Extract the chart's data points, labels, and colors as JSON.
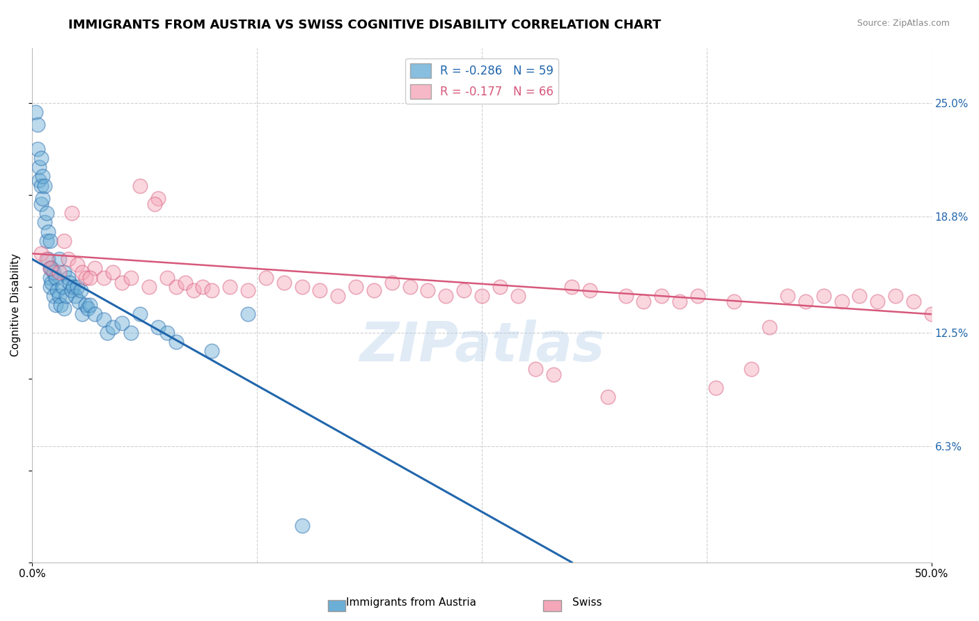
{
  "title": "IMMIGRANTS FROM AUSTRIA VS SWISS COGNITIVE DISABILITY CORRELATION CHART",
  "source_text": "Source: ZipAtlas.com",
  "ylabel": "Cognitive Disability",
  "xlim": [
    0.0,
    50.0
  ],
  "ylim": [
    0.0,
    28.0
  ],
  "y_tick_vals": [
    6.3,
    12.5,
    18.8,
    25.0
  ],
  "y_tick_labels": [
    "6.3%",
    "12.5%",
    "18.8%",
    "25.0%"
  ],
  "austria_R": -0.286,
  "austria_N": 59,
  "swiss_R": -0.177,
  "swiss_N": 66,
  "austria_color": "#6baed6",
  "swiss_color": "#f4a7b9",
  "austria_line_color": "#2166ac",
  "swiss_line_color": "#d6587a",
  "background_color": "#ffffff",
  "grid_color": "#d0d0d0",
  "title_fontsize": 13,
  "watermark": "ZIPatlas",
  "austria_scatter_x": [
    0.2,
    0.3,
    0.3,
    0.4,
    0.4,
    0.5,
    0.5,
    0.5,
    0.6,
    0.6,
    0.7,
    0.7,
    0.8,
    0.8,
    0.9,
    0.9,
    1.0,
    1.0,
    1.0,
    1.0,
    1.1,
    1.1,
    1.2,
    1.2,
    1.3,
    1.3,
    1.4,
    1.5,
    1.5,
    1.6,
    1.7,
    1.8,
    1.8,
    1.9,
    2.0,
    2.1,
    2.2,
    2.3,
    2.4,
    2.5,
    2.6,
    2.7,
    2.8,
    3.0,
    3.1,
    3.2,
    3.5,
    4.0,
    4.2,
    4.5,
    5.0,
    5.5,
    6.0,
    7.0,
    7.5,
    8.0,
    10.0,
    12.0,
    15.0
  ],
  "austria_scatter_y": [
    24.5,
    23.8,
    22.5,
    21.5,
    20.8,
    22.0,
    20.5,
    19.5,
    21.0,
    19.8,
    20.5,
    18.5,
    19.0,
    17.5,
    18.0,
    16.5,
    17.5,
    16.0,
    15.5,
    15.0,
    16.0,
    15.2,
    15.8,
    14.5,
    15.5,
    14.0,
    14.8,
    16.5,
    14.5,
    14.0,
    15.0,
    15.8,
    13.8,
    14.5,
    15.5,
    15.2,
    14.8,
    15.0,
    14.5,
    15.0,
    14.2,
    14.8,
    13.5,
    14.0,
    13.8,
    14.0,
    13.5,
    13.2,
    12.5,
    12.8,
    13.0,
    12.5,
    13.5,
    12.8,
    12.5,
    12.0,
    11.5,
    13.5,
    2.0
  ],
  "swiss_scatter_x": [
    0.5,
    0.8,
    1.0,
    1.5,
    1.8,
    2.0,
    2.2,
    2.5,
    2.8,
    3.0,
    3.5,
    4.0,
    4.5,
    5.0,
    5.5,
    6.0,
    6.5,
    7.0,
    7.5,
    8.0,
    8.5,
    9.0,
    9.5,
    10.0,
    11.0,
    12.0,
    13.0,
    14.0,
    15.0,
    16.0,
    17.0,
    18.0,
    19.0,
    20.0,
    21.0,
    22.0,
    23.0,
    24.0,
    25.0,
    26.0,
    27.0,
    28.0,
    29.0,
    30.0,
    31.0,
    32.0,
    33.0,
    34.0,
    35.0,
    36.0,
    37.0,
    38.0,
    39.0,
    40.0,
    41.0,
    42.0,
    43.0,
    44.0,
    45.0,
    46.0,
    47.0,
    48.0,
    49.0,
    50.0,
    3.2,
    6.8
  ],
  "swiss_scatter_y": [
    16.8,
    16.5,
    16.0,
    15.8,
    17.5,
    16.5,
    19.0,
    16.2,
    15.8,
    15.5,
    16.0,
    15.5,
    15.8,
    15.2,
    15.5,
    20.5,
    15.0,
    19.8,
    15.5,
    15.0,
    15.2,
    14.8,
    15.0,
    14.8,
    15.0,
    14.8,
    15.5,
    15.2,
    15.0,
    14.8,
    14.5,
    15.0,
    14.8,
    15.2,
    15.0,
    14.8,
    14.5,
    14.8,
    14.5,
    15.0,
    14.5,
    10.5,
    10.2,
    15.0,
    14.8,
    9.0,
    14.5,
    14.2,
    14.5,
    14.2,
    14.5,
    9.5,
    14.2,
    10.5,
    12.8,
    14.5,
    14.2,
    14.5,
    14.2,
    14.5,
    14.2,
    14.5,
    14.2,
    13.5,
    15.5,
    19.5
  ],
  "austria_line_x0": 0.0,
  "austria_line_y0": 16.5,
  "austria_line_x1": 30.0,
  "austria_line_y1": 0.0,
  "swiss_line_x0": 0.0,
  "swiss_line_y0": 16.8,
  "swiss_line_x1": 50.0,
  "swiss_line_y1": 13.5
}
